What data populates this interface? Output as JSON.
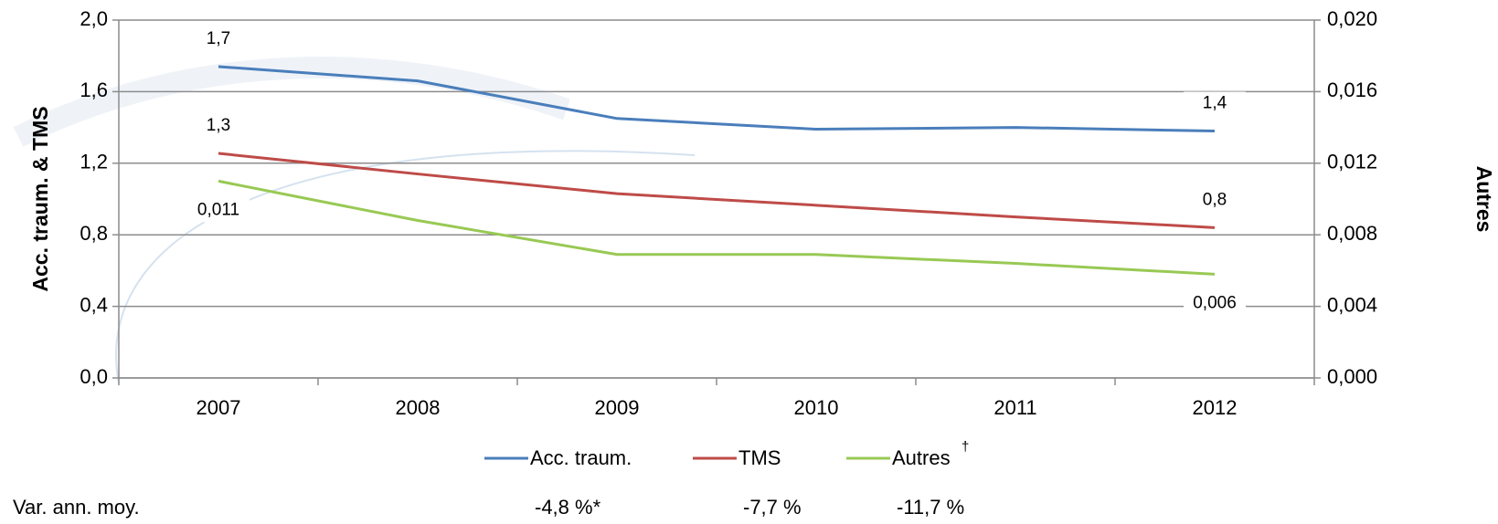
{
  "chart_data": {
    "type": "line",
    "categories": [
      "2007",
      "2008",
      "2009",
      "2010",
      "2011",
      "2012"
    ],
    "ylabel": "Acc. traum. & TMS",
    "y2label": "Autres",
    "ylim": [
      0,
      2.0
    ],
    "yticks": [
      {
        "value": 0,
        "label": "0,0"
      },
      {
        "value": 0.4,
        "label": "0,4"
      },
      {
        "value": 0.8,
        "label": "0,8"
      },
      {
        "value": 1.2,
        "label": "1,2"
      },
      {
        "value": 1.6,
        "label": "1,6"
      },
      {
        "value": 2.0,
        "label": "2,0"
      }
    ],
    "y2lim": [
      0,
      0.02
    ],
    "y2ticks": [
      {
        "value": 0,
        "label": "0,000"
      },
      {
        "value": 0.004,
        "label": "0,004"
      },
      {
        "value": 0.008,
        "label": "0,008"
      },
      {
        "value": 0.012,
        "label": "0,012"
      },
      {
        "value": 0.016,
        "label": "0,016"
      },
      {
        "value": 0.02,
        "label": "0,020"
      }
    ],
    "grid": true,
    "legend_title": "Var. ann. moy.",
    "series": [
      {
        "name": "Acc. traum.",
        "change": "-4,8 %*",
        "color": "#4a7ebb",
        "values": [
          1.74,
          1.66,
          1.45,
          1.39,
          1.4,
          1.38
        ],
        "value_labels": [
          "1,7",
          null,
          null,
          null,
          null,
          "1,4"
        ]
      },
      {
        "name": "TMS",
        "change": "-7,7 %",
        "color": "#be4b48",
        "values": [
          1.255,
          1.14,
          1.03,
          0.965,
          0.9,
          0.84
        ],
        "value_labels": [
          "1,3",
          null,
          null,
          null,
          null,
          "0,8"
        ]
      },
      {
        "name": "Autres",
        "note_mark": "†",
        "change": "-11,7 %",
        "color": "#98c954",
        "axis": "y2",
        "values": [
          0.011,
          0.0088,
          0.0069,
          0.0069,
          0.0064,
          0.0058
        ],
        "value_labels": [
          "0,011",
          null,
          null,
          null,
          null,
          "0,006"
        ]
      }
    ]
  }
}
